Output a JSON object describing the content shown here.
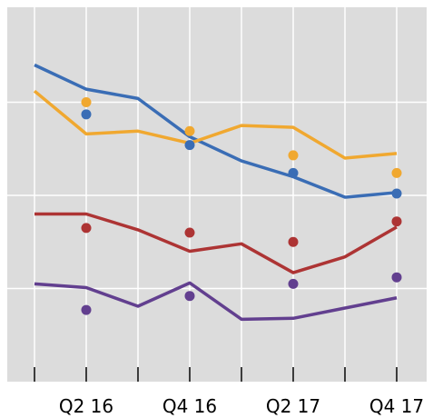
{
  "chart_data": {
    "type": "line",
    "categories": [
      null,
      "Q2 16",
      null,
      "Q4 16",
      null,
      "Q2 17",
      null,
      "Q4 17"
    ],
    "ylim": [
      0,
      4
    ],
    "yticks": [
      1,
      2,
      3
    ],
    "grid": true,
    "series": [
      {
        "color": "#3a6db5",
        "values": [
          3.4,
          3.14,
          3.04,
          2.63,
          2.37,
          2.2,
          1.98,
          2.03
        ],
        "dot_values": [
          null,
          2.87,
          null,
          2.54,
          null,
          2.24,
          null,
          2.02
        ]
      },
      {
        "color": "#f0a830",
        "values": [
          3.12,
          2.66,
          2.69,
          2.56,
          2.75,
          2.73,
          2.4,
          2.45
        ],
        "dot_values": [
          null,
          3.0,
          null,
          2.69,
          null,
          2.43,
          null,
          2.24
        ]
      },
      {
        "color": "#ad3434",
        "values": [
          1.8,
          1.8,
          1.63,
          1.4,
          1.48,
          1.17,
          1.34,
          1.66
        ],
        "dot_values": [
          null,
          1.65,
          null,
          1.6,
          null,
          1.5,
          null,
          1.72
        ]
      },
      {
        "color": "#623f8f",
        "values": [
          1.05,
          1.01,
          0.81,
          1.06,
          0.67,
          0.68,
          0.79,
          0.9
        ],
        "dot_values": [
          null,
          0.77,
          null,
          0.92,
          null,
          1.05,
          null,
          1.12
        ]
      }
    ]
  }
}
